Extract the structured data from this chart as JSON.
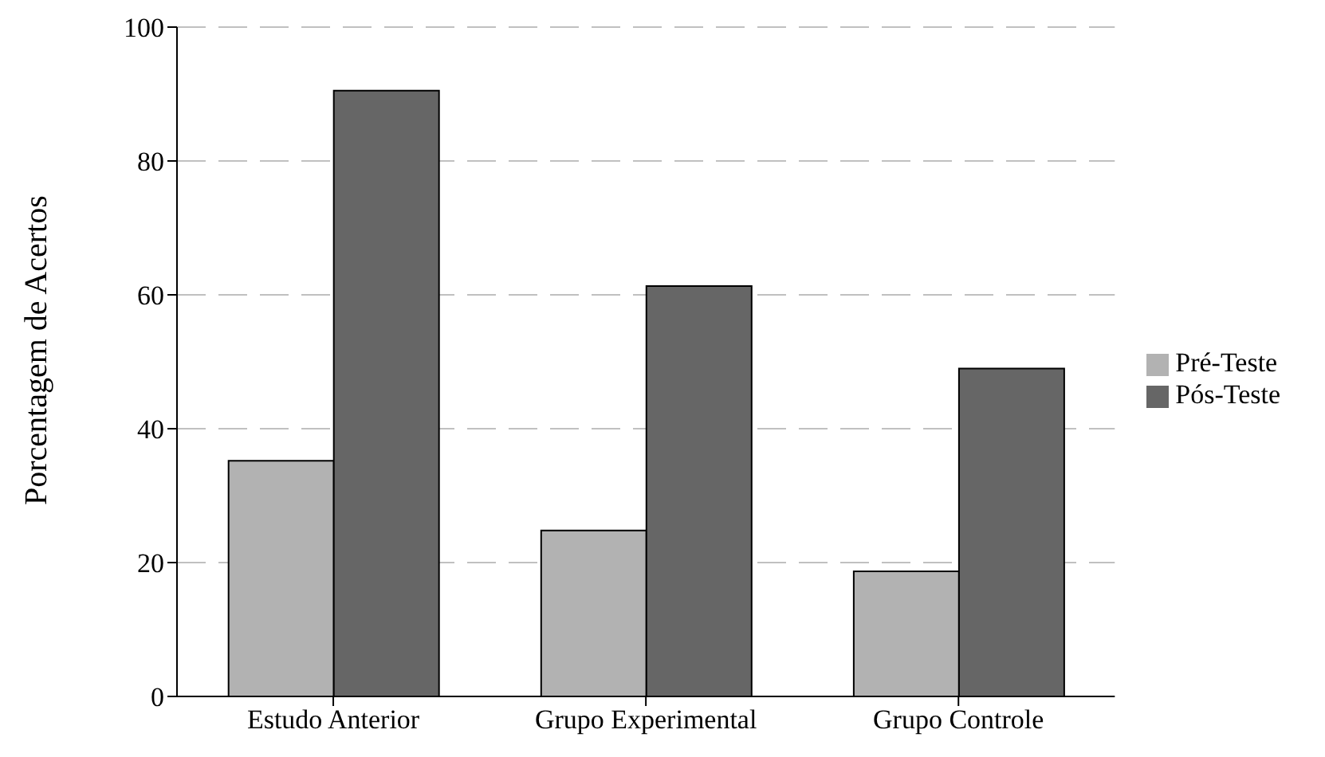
{
  "chart_data": {
    "type": "bar",
    "ylabel": "Porcentagem de Acertos",
    "categories": [
      "Estudo Anterior",
      "Grupo Experimental",
      "Grupo Controle"
    ],
    "series": [
      {
        "name": "Pré-Teste",
        "color": "#b2b2b2",
        "values": [
          35.2,
          24.8,
          18.7
        ]
      },
      {
        "name": "Pós-Teste",
        "color": "#666666",
        "values": [
          90.5,
          61.3,
          49.0
        ]
      }
    ],
    "ylim": [
      0,
      100
    ],
    "yticks": [
      0,
      20,
      40,
      60,
      80,
      100
    ],
    "grid": "y",
    "legend": "right"
  }
}
